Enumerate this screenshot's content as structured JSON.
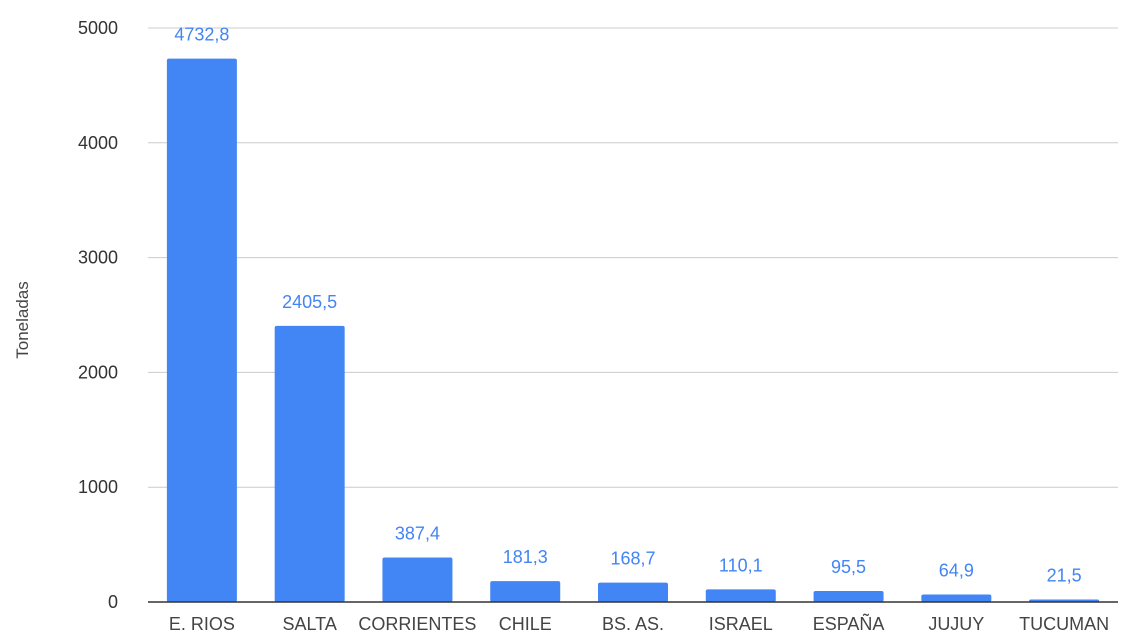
{
  "chart_data": {
    "type": "bar",
    "categories": [
      "E. RIOS",
      "SALTA",
      "CORRIENTES",
      "CHILE",
      "BS. AS.",
      "ISRAEL",
      "ESPAÑA",
      "JUJUY",
      "TUCUMAN"
    ],
    "values": [
      4732.8,
      2405.5,
      387.4,
      181.3,
      168.7,
      110.1,
      95.5,
      64.9,
      21.5
    ],
    "value_labels": [
      "4732,8",
      "2405,5",
      "387,4",
      "181,3",
      "168,7",
      "110,1",
      "95,5",
      "64,9",
      "21,5"
    ],
    "title": "",
    "xlabel": "",
    "ylabel": "Toneladas",
    "ylim": [
      0,
      5000
    ],
    "yticks": [
      0,
      1000,
      2000,
      3000,
      4000,
      5000
    ],
    "grid": true,
    "legend": "none",
    "bar_color": "#4285F4",
    "label_color": "#4285F4"
  }
}
